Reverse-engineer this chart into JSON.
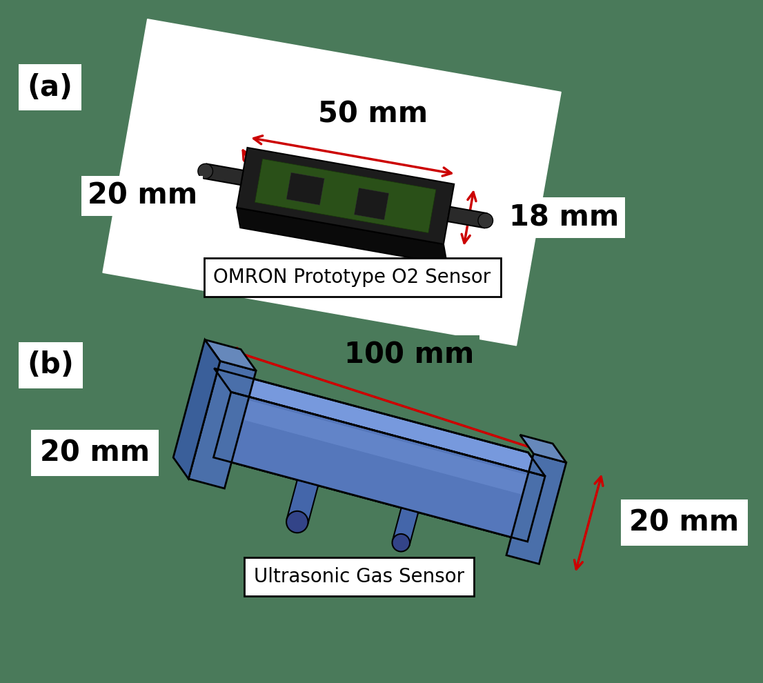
{
  "bg_color": "#4a7a5a",
  "fig_width": 11.06,
  "fig_height": 9.9,
  "label_a": "(a)",
  "label_b": "(b)",
  "label_fontsize": 30,
  "dim_fontsize": 30,
  "caption_fontsize": 20,
  "panel_a": {
    "paper_color": "#ffffff",
    "sensor_color_dark": "#1a1a1a",
    "sensor_color_side": "#111111",
    "pcb_color_dark": "#1e3d10",
    "pcb_color_light": "#2d5a1b",
    "dim_50mm": "50 mm",
    "dim_20mm_left": "20 mm",
    "dim_18mm": "18 mm",
    "caption": "OMRON Prototype O2 Sensor"
  },
  "panel_b": {
    "body_color_main": "#5577bb",
    "body_color_light": "#88aadd",
    "body_color_dark": "#334488",
    "body_color_top": "#7799cc",
    "dim_100mm": "100 mm",
    "dim_20mm_left": "20 mm",
    "dim_20mm_right": "20 mm",
    "caption": "Ultrasonic Gas Sensor"
  },
  "arrow_color": "#cc0000",
  "text_color": "#000000",
  "white": "#ffffff"
}
